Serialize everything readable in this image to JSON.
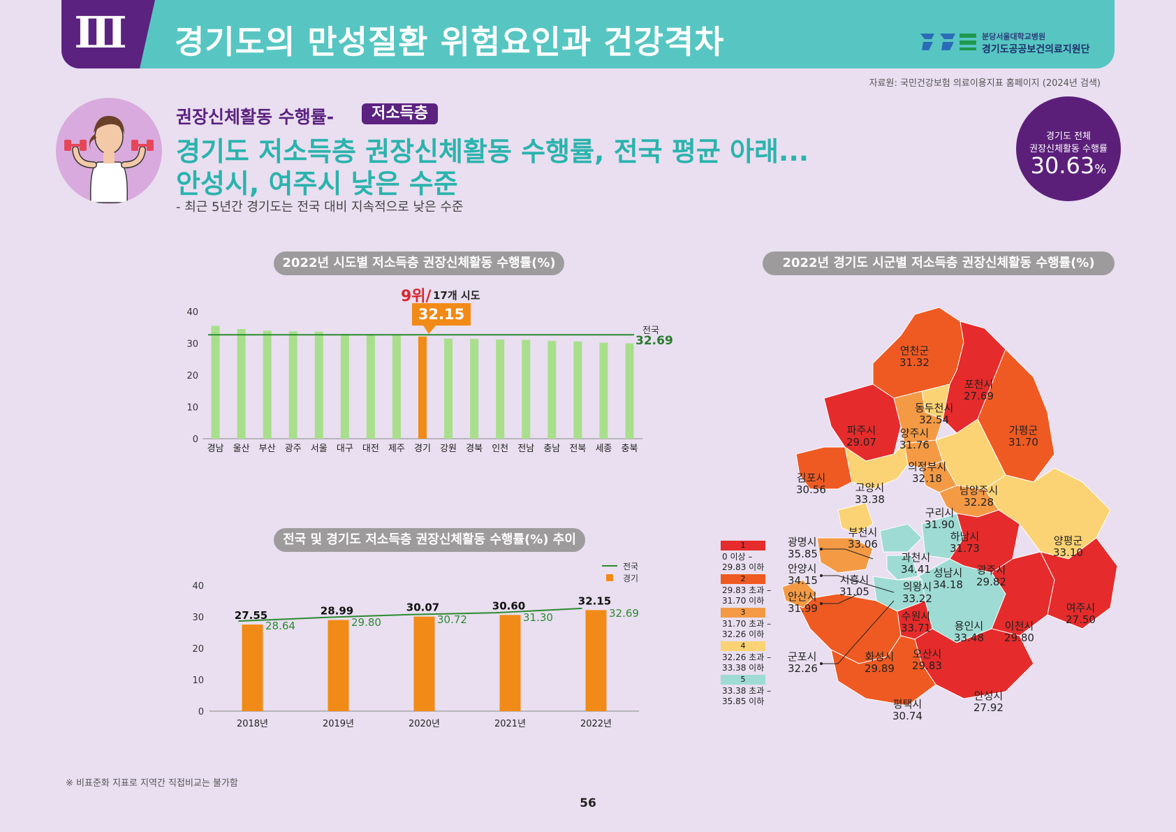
{
  "header": {
    "chapter": "Ⅲ",
    "title": "경기도의 만성질환 위험요인과 건강격차",
    "logo_line1": "분당서울대학교병원",
    "logo_line2": "경기도공공보건의료지원단"
  },
  "source": "자료원: 국민건강보험 의료이용지표 홈페이지 (2024년 검색)",
  "section": {
    "label": "권장신체활동 수행률-",
    "tag": "저소득층",
    "headline_line1": "경기도 저소득층 권장신체활동 수행률, 전국 평균 아래...",
    "headline_line2": "안성시, 여주시 낮은 수준",
    "subline": "- 최근 5년간 경기도는 전국 대비 지속적으로 낮은 수준"
  },
  "total": {
    "line1": "경기도 전체",
    "line2": "권장신체활동 수행률",
    "value": "30.63",
    "unit": "%"
  },
  "colors": {
    "header": "#57c6c2",
    "purple": "#5b2280",
    "bar_green": "#a9df8c",
    "bar_orange": "#f28a17",
    "line_green": "#2a8a2f",
    "class1": "#e52b2b",
    "class2": "#ef5a22",
    "class3": "#f49a45",
    "class4": "#fbd374",
    "class5": "#9edbd4"
  },
  "chart_data": [
    {
      "type": "bar",
      "title": "2022년 시도별 저소득층 권장신체활동 수행률(%)",
      "categories": [
        "경남",
        "울산",
        "부산",
        "광주",
        "서울",
        "대구",
        "대전",
        "제주",
        "경기",
        "강원",
        "경북",
        "인천",
        "전남",
        "충남",
        "전북",
        "세종",
        "충북"
      ],
      "values": [
        35.5,
        34.5,
        34.0,
        33.8,
        33.7,
        33.0,
        32.9,
        32.6,
        32.15,
        31.5,
        31.4,
        31.2,
        31.1,
        30.8,
        30.6,
        30.2,
        30.0
      ],
      "highlight": "경기",
      "highlight_value": "32.15",
      "rank_main": "9위/",
      "rank_sub": "17개 시도",
      "reference_line": {
        "label": "전국",
        "value": 32.69,
        "value_label": "32.69"
      },
      "ylim": [
        0,
        40
      ],
      "yticks": [
        "0",
        "10",
        "20",
        "30",
        "40"
      ]
    },
    {
      "type": "bar",
      "title": "전국 및 경기도 저소득층 권장신체활동 수행률(%) 추이",
      "categories": [
        "2018년",
        "2019년",
        "2020년",
        "2021년",
        "2022년"
      ],
      "series": [
        {
          "name": "전국",
          "type": "line",
          "values": [
            28.64,
            29.8,
            30.72,
            31.3,
            32.69
          ],
          "labels": [
            "28.64",
            "29.80",
            "30.72",
            "31.30",
            "32.69"
          ]
        },
        {
          "name": "경기",
          "type": "bar",
          "values": [
            27.55,
            28.99,
            30.07,
            30.6,
            32.15
          ],
          "labels": [
            "27.55",
            "28.99",
            "30.07",
            "30.60",
            "32.15"
          ]
        }
      ],
      "ylim": [
        0,
        40
      ],
      "yticks": [
        "0",
        "10",
        "20",
        "30",
        "40"
      ],
      "legend": "top-right"
    }
  ],
  "map": {
    "title": "2022년 경기도 시군별 저소득층 권장신체활동 수행률(%)",
    "legend": [
      {
        "num": "1",
        "range": [
          "0 이상 –",
          "29.83 이하"
        ]
      },
      {
        "num": "2",
        "range": [
          "29.83 초과 –",
          "31.70 이하"
        ]
      },
      {
        "num": "3",
        "range": [
          "31.70 초과 –",
          "32.26 이하"
        ]
      },
      {
        "num": "4",
        "range": [
          "32.26 초과 –",
          "33.38 이하"
        ]
      },
      {
        "num": "5",
        "range": [
          "33.38 초과 –",
          "35.85 이하"
        ]
      }
    ],
    "regions": [
      {
        "name": "연천군",
        "value": "31.32"
      },
      {
        "name": "포천시",
        "value": "27.69"
      },
      {
        "name": "동두천시",
        "value": "32.54"
      },
      {
        "name": "파주시",
        "value": "29.07"
      },
      {
        "name": "양주시",
        "value": "31.76"
      },
      {
        "name": "가평군",
        "value": "31.70"
      },
      {
        "name": "의정부시",
        "value": "32.18"
      },
      {
        "name": "김포시",
        "value": "30.56"
      },
      {
        "name": "고양시",
        "value": "33.38"
      },
      {
        "name": "남양주시",
        "value": "32.28"
      },
      {
        "name": "구리시",
        "value": "31.90"
      },
      {
        "name": "부천시",
        "value": "33.06"
      },
      {
        "name": "하남시",
        "value": "31.73"
      },
      {
        "name": "양평군",
        "value": "33.10"
      },
      {
        "name": "과천시",
        "value": "34.41"
      },
      {
        "name": "성남시",
        "value": "34.18"
      },
      {
        "name": "광주시",
        "value": "29.82"
      },
      {
        "name": "시흥시",
        "value": "31.05"
      },
      {
        "name": "의왕시",
        "value": "33.22"
      },
      {
        "name": "수원시",
        "value": "33.71"
      },
      {
        "name": "용인시",
        "value": "33.48"
      },
      {
        "name": "이천시",
        "value": "29.80"
      },
      {
        "name": "여주시",
        "value": "27.50"
      },
      {
        "name": "화성시",
        "value": "29.89"
      },
      {
        "name": "오산시",
        "value": "29.83"
      },
      {
        "name": "안성시",
        "value": "27.92"
      },
      {
        "name": "평택시",
        "value": "30.74"
      }
    ],
    "side_regions": [
      {
        "name": "광명시",
        "value": "35.85"
      },
      {
        "name": "안양시",
        "value": "34.15"
      },
      {
        "name": "안산시",
        "value": "31.99"
      },
      {
        "name": "군포시",
        "value": "32.26"
      }
    ]
  },
  "footnote": "※ 비표준화 지표로 지역간 직접비교는 불가함",
  "page_number": "56"
}
